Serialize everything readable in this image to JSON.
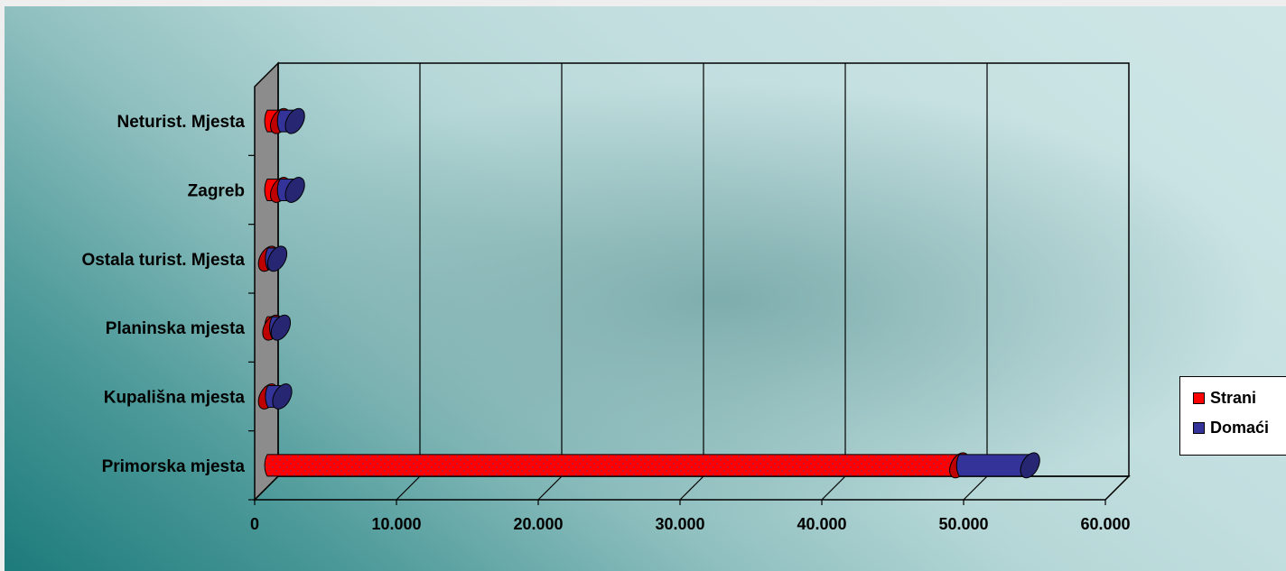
{
  "chart_data": {
    "type": "bar",
    "orientation": "horizontal",
    "stacked": true,
    "style": "3d-cylinder",
    "categories": [
      "Primorska mjesta",
      "Kupališna mjesta",
      "Planinska mjesta",
      "Ostala turist. Mjesta",
      "Zagreb",
      "Neturist. Mjesta"
    ],
    "series": [
      {
        "name": "Strani",
        "color": "#ff0000",
        "values": [
          48800,
          50,
          350,
          50,
          900,
          900
        ]
      },
      {
        "name": "Domaći",
        "color": "#333399",
        "values": [
          5000,
          1000,
          600,
          650,
          1050,
          1050
        ]
      }
    ],
    "xlim": [
      0,
      60000
    ],
    "xticks": [
      "0",
      "10.000",
      "20.000",
      "30.000",
      "40.000",
      "50.000",
      "60.000"
    ],
    "xlabel": "",
    "ylabel": "",
    "grid": true,
    "legend_position": "right"
  }
}
